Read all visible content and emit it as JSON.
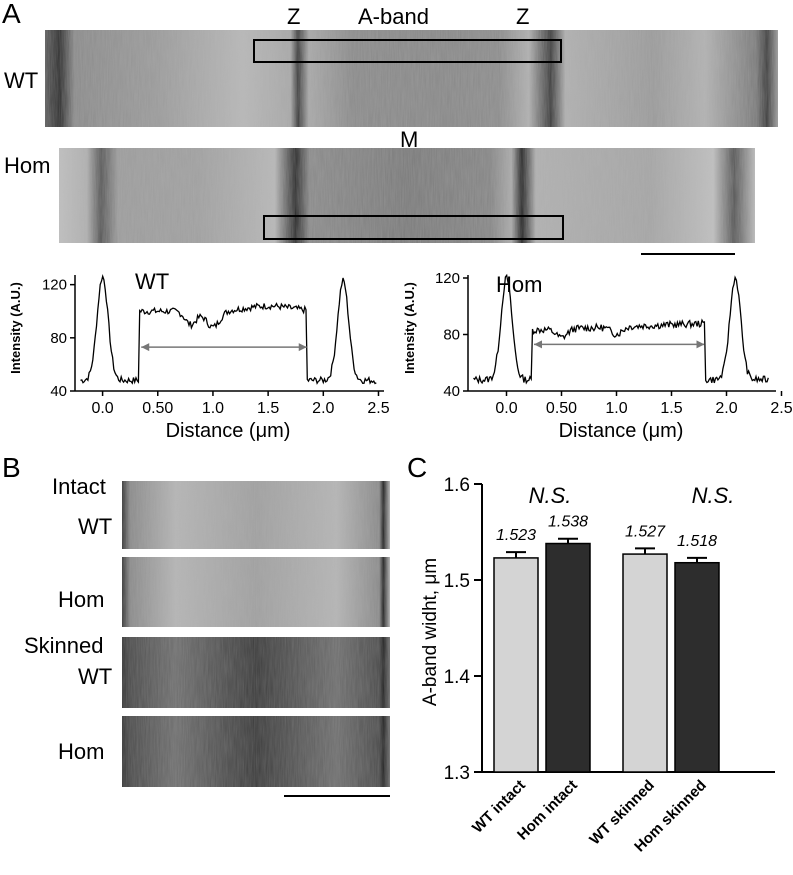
{
  "panelA": {
    "letter": "A",
    "wt_label": "WT",
    "hom_label": "Hom",
    "z_left": "Z",
    "z_right": "Z",
    "a_band_label": "A-band",
    "m_label": "M",
    "plot_wt": {
      "type": "line",
      "title": "WT",
      "ylabel": "Intensity (A.U.)",
      "xlabel": "Distance (μm)",
      "yticks": [
        "40",
        "80",
        "120"
      ],
      "xticks": [
        "0.0",
        "0.50",
        "1.0",
        "1.5",
        "2.0",
        "2.5"
      ],
      "ylim": [
        40,
        125
      ],
      "xlim": [
        -0.25,
        2.55
      ],
      "arrow_range": [
        0.35,
        1.85
      ]
    },
    "plot_hom": {
      "type": "line",
      "title": "Hom",
      "ylabel": "Intensity (A.U.)",
      "xlabel": "Distance (μm)",
      "yticks": [
        "40",
        "80",
        "120"
      ],
      "xticks": [
        "0.0",
        "0.50",
        "1.0",
        "1.5",
        "2.0",
        "2.5"
      ],
      "ylim": [
        40,
        120
      ],
      "xlim": [
        -0.35,
        2.45
      ],
      "arrow_range": [
        0.25,
        1.8
      ]
    }
  },
  "panelB": {
    "letter": "B",
    "intact_label": "Intact",
    "skinned_label": "Skinned",
    "rows": [
      "WT",
      "Hom",
      "WT",
      "Hom"
    ]
  },
  "panelC": {
    "letter": "C",
    "chart_data": {
      "type": "bar",
      "categories": [
        "WT intact",
        "Hom intact",
        "WT skinned",
        "Hom skinned"
      ],
      "values": [
        1.523,
        1.538,
        1.527,
        1.518
      ],
      "value_labels": [
        "1.523",
        "1.538",
        "1.527",
        "1.518"
      ],
      "errors": [
        0.006,
        0.005,
        0.006,
        0.005
      ],
      "colors": [
        "#d4d4d4",
        "#2d2d2d",
        "#d4d4d4",
        "#2d2d2d"
      ],
      "ylabel": "A-band widht, μm",
      "ylim": [
        1.3,
        1.6
      ],
      "yticks": [
        "1.3",
        "1.4",
        "1.5",
        "1.6"
      ],
      "significance": [
        "N.S.",
        "N.S."
      ]
    }
  }
}
